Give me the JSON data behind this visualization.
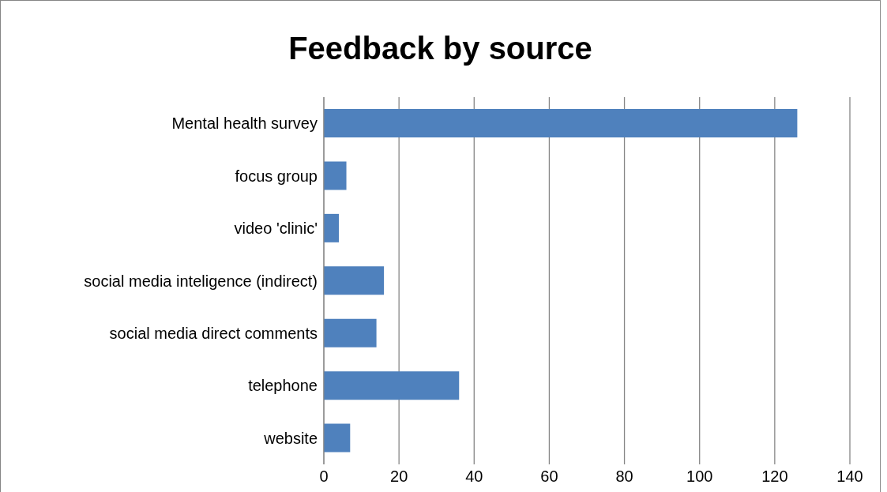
{
  "chart_data": {
    "type": "bar",
    "title": "Feedback by source",
    "orientation": "horizontal",
    "categories": [
      "Mental health survey",
      "focus group",
      "video 'clinic'",
      "social media inteligence (indirect)",
      "social media direct comments",
      "telephone",
      "website"
    ],
    "values": [
      126,
      6,
      4,
      16,
      14,
      36,
      7
    ],
    "color": "#4f81bd",
    "xlim": [
      0,
      140
    ],
    "xticks": [
      0,
      20,
      40,
      60,
      80,
      100,
      120,
      140
    ],
    "grid": "x"
  }
}
